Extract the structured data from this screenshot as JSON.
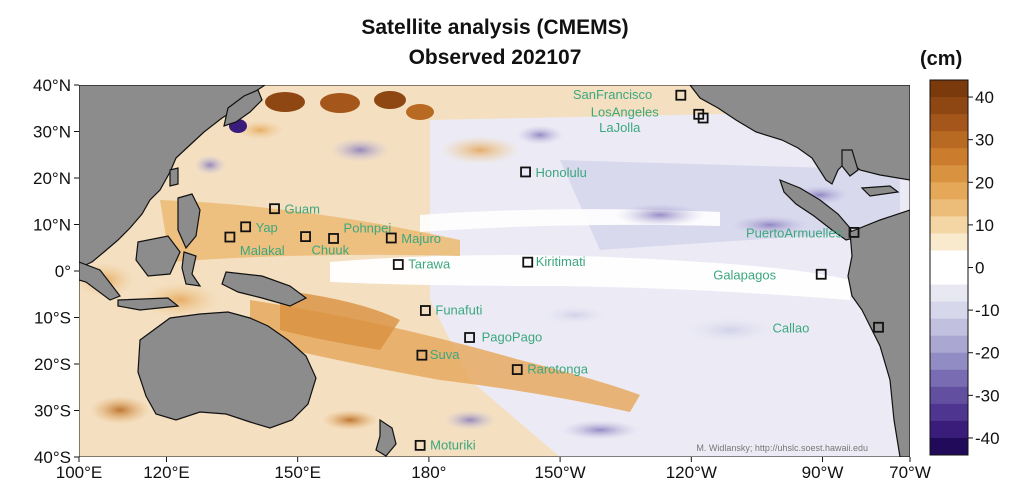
{
  "title_line1": "Satellite analysis (CMEMS)",
  "title_line2": "Observed 202107",
  "units": "(cm)",
  "credit": "M. Widlansky; http://uhslc.soest.hawaii.edu",
  "lat_labels": [
    {
      "lat": 40,
      "label": "40°N"
    },
    {
      "lat": 30,
      "label": "30°N"
    },
    {
      "lat": 20,
      "label": "20°N"
    },
    {
      "lat": 10,
      "label": "10°N"
    },
    {
      "lat": 0,
      "label": "0°"
    },
    {
      "lat": -10,
      "label": "10°S"
    },
    {
      "lat": -20,
      "label": "20°S"
    },
    {
      "lat": -30,
      "label": "30°S"
    },
    {
      "lat": -40,
      "label": "40°S"
    }
  ],
  "lon_labels": [
    {
      "lon": 100,
      "label": "100°E"
    },
    {
      "lon": 120,
      "label": "120°E"
    },
    {
      "lon": 150,
      "label": "150°E"
    },
    {
      "lon": 180,
      "label": "180°"
    },
    {
      "lon": 210,
      "label": "150°W"
    },
    {
      "lon": 240,
      "label": "120°W"
    },
    {
      "lon": 270,
      "label": "90°W"
    },
    {
      "lon": 290,
      "label": "70°W"
    }
  ],
  "colorbar": {
    "min": -40,
    "max": 40,
    "tick_labels": [
      "40",
      "30",
      "20",
      "10",
      "0",
      "-10",
      "-20",
      "-30",
      "-40"
    ],
    "colors": [
      "#7a3a0c",
      "#8e4712",
      "#a5561a",
      "#b96a22",
      "#cb7d2d",
      "#d89240",
      "#e4a858",
      "#ecbd78",
      "#f4d5a4",
      "#faeacd",
      "#ffffff",
      "#ffffff",
      "#e8e8f3",
      "#d6d7ea",
      "#c1c1df",
      "#aaa7d2",
      "#918cc3",
      "#7a6cb2",
      "#634fa0",
      "#4e3590",
      "#3a1d7a",
      "#220a5a"
    ]
  },
  "stations": [
    {
      "name": "SanFrancisco",
      "lon": 237.6,
      "lat": 37.8
    },
    {
      "name": "LosAngeles",
      "lon": 241.7,
      "lat": 33.7
    },
    {
      "name": "LaJolla",
      "lon": 242.7,
      "lat": 32.9
    },
    {
      "name": "Honolulu",
      "lon": 202.1,
      "lat": 21.3
    },
    {
      "name": "Guam",
      "lon": 144.7,
      "lat": 13.4
    },
    {
      "name": "Yap",
      "lon": 138.1,
      "lat": 9.5
    },
    {
      "name": "Malakal",
      "lon": 134.5,
      "lat": 7.3
    },
    {
      "name": "Chuuk",
      "lon": 151.8,
      "lat": 7.4
    },
    {
      "name": "Pohnpei",
      "lon": 158.2,
      "lat": 7.0
    },
    {
      "name": "Majuro",
      "lon": 171.4,
      "lat": 7.1
    },
    {
      "name": "Tarawa",
      "lon": 173.0,
      "lat": 1.4
    },
    {
      "name": "Kiritimati",
      "lon": 202.6,
      "lat": 1.9
    },
    {
      "name": "PuertoArmuelles",
      "lon": 277.2,
      "lat": 8.3
    },
    {
      "name": "Galapagos",
      "lon": 269.7,
      "lat": -0.7
    },
    {
      "name": "Callao",
      "lon": 282.8,
      "lat": -12.1
    },
    {
      "name": "Funafuti",
      "lon": 179.2,
      "lat": -8.5
    },
    {
      "name": "PagoPago",
      "lon": 189.3,
      "lat": -14.3
    },
    {
      "name": "Suva",
      "lon": 178.4,
      "lat": -18.1
    },
    {
      "name": "Rarotonga",
      "lon": 200.2,
      "lat": -21.2
    },
    {
      "name": "Moturiki",
      "lon": 178.0,
      "lat": -37.5
    }
  ]
}
